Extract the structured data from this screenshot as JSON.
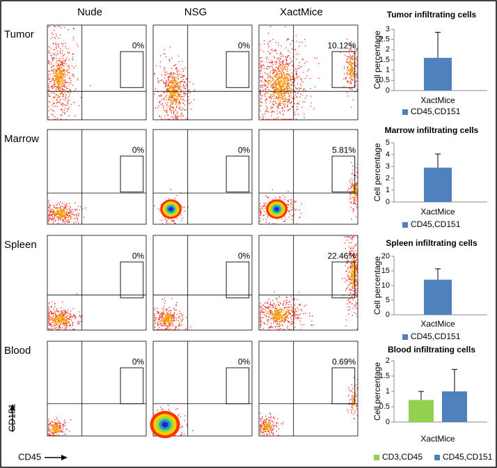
{
  "figure": {
    "columns": [
      "Nude",
      "NSG",
      "XactMice"
    ],
    "rows": [
      {
        "label": "Tumor",
        "gates": [
          "0%",
          "0%",
          "10.12%"
        ]
      },
      {
        "label": "Marrow",
        "gates": [
          "0%",
          "0%",
          "5.81%"
        ]
      },
      {
        "label": "Spleen",
        "gates": [
          "0%",
          "0%",
          "22.46%"
        ]
      },
      {
        "label": "Blood",
        "gates": [
          "0%",
          "0%",
          "0.69%"
        ]
      }
    ],
    "axis_labels": {
      "y": "CD151",
      "x": "CD45"
    }
  },
  "chart_data": [
    {
      "type": "bar",
      "title": "Tumor infiltrating  cells",
      "ylabel": "Cell percentage",
      "categories": [
        "XactMice"
      ],
      "series": [
        {
          "name": "CD45,CD151",
          "color": "#4f81bd",
          "values": [
            1.6
          ],
          "errors": [
            1.25
          ]
        }
      ],
      "ylim": [
        0,
        3
      ],
      "yticks": [
        0,
        0.5,
        1,
        1.5,
        2,
        2.5,
        3
      ]
    },
    {
      "type": "bar",
      "title": "Marrow infiltrating cells",
      "ylabel": "Cell percentage",
      "categories": [
        "XactMice"
      ],
      "series": [
        {
          "name": "CD45,CD151",
          "color": "#4f81bd",
          "values": [
            2.9
          ],
          "errors": [
            1.15
          ]
        }
      ],
      "ylim": [
        0,
        5
      ],
      "yticks": [
        0,
        1,
        2,
        3,
        4,
        5
      ]
    },
    {
      "type": "bar",
      "title": "Spleen infiltrating cells",
      "ylabel": "Cell percentage",
      "categories": [
        "XactMice"
      ],
      "series": [
        {
          "name": "CD45,CD151",
          "color": "#4f81bd",
          "values": [
            12
          ],
          "errors": [
            3.7
          ]
        }
      ],
      "ylim": [
        0,
        20
      ],
      "yticks": [
        0,
        5,
        10,
        15,
        20
      ]
    },
    {
      "type": "bar",
      "title": "Blood infiltrating cells",
      "ylabel": "Cell percentage",
      "categories": [
        "XactMice"
      ],
      "series": [
        {
          "name": "CD3,CD45",
          "color": "#92d050",
          "values": [
            0.72
          ],
          "errors": [
            0.28
          ]
        },
        {
          "name": "CD45,CD151",
          "color": "#4f81bd",
          "values": [
            1.0
          ],
          "errors": [
            0.72
          ]
        }
      ],
      "ylim": [
        0,
        2
      ],
      "yticks": [
        0,
        0.5,
        1,
        1.5,
        2
      ]
    }
  ]
}
